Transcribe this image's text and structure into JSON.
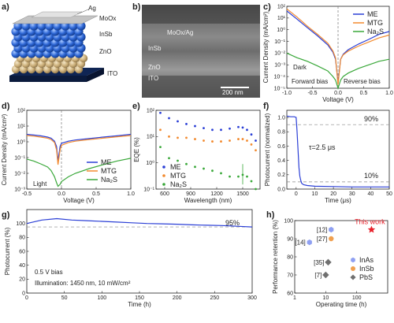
{
  "colors": {
    "ME": "#2b3fd6",
    "MTG": "#f28a2f",
    "Na2S": "#3aa83a",
    "InAs": "#8fa0f2",
    "InSb": "#f0a050",
    "PbS": "#707070",
    "this_work": "#e8202a"
  },
  "panels": {
    "a": {
      "label": "a)",
      "layers": [
        "Ag",
        "MoOx",
        "InSb",
        "ZnO",
        "ITO"
      ]
    },
    "b": {
      "label": "b)",
      "layers": [
        "MoOx/Ag",
        "InSb",
        "ZnO",
        "ITO"
      ],
      "scale_bar": "200 nm"
    },
    "c": {
      "label": "c)"
    },
    "d": {
      "label": "d)"
    },
    "e": {
      "label": "e)"
    },
    "f": {
      "label": "f)"
    },
    "g": {
      "label": "g)"
    },
    "h": {
      "label": "h)"
    }
  },
  "chart_data": [
    {
      "id": "c",
      "type": "line",
      "subtitle": "Dark",
      "xlabel": "Voltage (V)",
      "ylabel": "Current Density (mA/cm²)",
      "xlim": [
        -1.0,
        1.0
      ],
      "ylim_log10": [
        -5,
        2
      ],
      "yscale": "log",
      "xticks": [
        "-1.0",
        "-0.5",
        "0.0",
        "0.5",
        "1.0"
      ],
      "yticks": [
        "10⁻⁵",
        "10⁻⁴",
        "10⁻³",
        "10⁻²",
        "10⁻¹",
        "10⁰",
        "10¹",
        "10²"
      ],
      "annotations": [
        "Forward bias",
        "Reverse bias"
      ],
      "legend": "top-right",
      "x": [
        -1.0,
        -0.8,
        -0.6,
        -0.4,
        -0.2,
        -0.1,
        -0.05,
        0.0,
        0.05,
        0.1,
        0.2,
        0.4,
        0.6,
        0.8,
        1.0
      ],
      "series": [
        {
          "name": "ME",
          "color_key": "ME",
          "values": [
            40,
            8,
            1.5,
            0.3,
            0.05,
            0.012,
            0.003,
            3e-05,
            0.003,
            0.008,
            0.02,
            0.06,
            0.15,
            0.4,
            0.7
          ]
        },
        {
          "name": "MTG",
          "color_key": "MTG",
          "values": [
            60,
            12,
            2.0,
            0.4,
            0.07,
            0.015,
            0.004,
            2e-05,
            0.003,
            0.007,
            0.015,
            0.04,
            0.09,
            0.2,
            0.35
          ]
        },
        {
          "name": "Na₂S",
          "color_key": "Na2S",
          "values": [
            0.01,
            0.004,
            0.002,
            0.0008,
            0.0003,
            0.0001,
            5e-05,
            1e-05,
            5e-05,
            0.0001,
            0.0002,
            0.0005,
            0.001,
            0.002,
            0.003
          ]
        }
      ]
    },
    {
      "id": "d",
      "type": "line",
      "subtitle": "Light",
      "xlabel": "Voltage (V)",
      "ylabel": "Current Density (mA/cm²)",
      "xlim": [
        -0.5,
        1.0
      ],
      "ylim_log10": [
        -3,
        2
      ],
      "yscale": "log",
      "xticks": [
        "-0.5",
        "0.0",
        "0.5",
        "1.0"
      ],
      "yticks": [
        "10⁻³",
        "10⁻²",
        "10⁻¹",
        "10⁰",
        "10¹",
        "10²"
      ],
      "legend": "bottom-right",
      "x": [
        -0.5,
        -0.4,
        -0.3,
        -0.2,
        -0.15,
        -0.1,
        -0.07,
        -0.05,
        -0.02,
        0.0,
        0.1,
        0.2,
        0.4,
        0.6,
        0.8,
        1.0
      ],
      "series": [
        {
          "name": "ME",
          "color_key": "ME",
          "values": [
            3,
            2.7,
            2.4,
            2.0,
            1.7,
            1.1,
            0.5,
            0.06,
            0.5,
            0.8,
            1.1,
            1.3,
            1.6,
            2.0,
            2.4,
            3.0
          ]
        },
        {
          "name": "MTG",
          "color_key": "MTG",
          "values": [
            2.5,
            2.3,
            2.0,
            1.7,
            1.4,
            0.9,
            0.3,
            0.035,
            0.3,
            0.6,
            0.9,
            1.1,
            1.4,
            1.7,
            2.1,
            2.5
          ]
        },
        {
          "name": "Na₂S",
          "color_key": "Na2S",
          "values": [
            0.08,
            0.06,
            0.04,
            0.025,
            0.015,
            0.006,
            0.0025,
            0.0015,
            0.002,
            0.003,
            0.006,
            0.01,
            0.02,
            0.035,
            0.06,
            0.09
          ]
        }
      ]
    },
    {
      "id": "e",
      "type": "scatter",
      "xlabel": "Wavelength (nm)",
      "ylabel": "EQE (%)",
      "xlim": [
        500,
        1700
      ],
      "ylim_log10": [
        -1,
        2
      ],
      "yscale": "log",
      "xticks": [
        "600",
        "900",
        "1200",
        "1500"
      ],
      "yticks": [
        "10⁻¹",
        "10⁰",
        "10¹",
        "10²"
      ],
      "legend": "bottom-left",
      "x": [
        550,
        650,
        750,
        850,
        950,
        1050,
        1150,
        1250,
        1350,
        1450,
        1500,
        1550,
        1600,
        1650
      ],
      "series": [
        {
          "name": "ME",
          "color_key": "ME",
          "values": [
            80,
            50,
            38,
            30,
            25,
            21,
            18,
            18,
            20,
            23,
            22,
            18,
            12,
            7
          ]
        },
        {
          "name": "MTG",
          "color_key": "MTG",
          "values": [
            18,
            10,
            9,
            9,
            8,
            7,
            6.5,
            6.5,
            7,
            8,
            8,
            7,
            5,
            3
          ]
        },
        {
          "name": "Na₂S",
          "color_key": "Na2S",
          "values": [
            4,
            1.5,
            1.2,
            0.9,
            0.7,
            0.6,
            0.5,
            0.4,
            0.3,
            0.3,
            0.35,
            0.3,
            0.2,
            0.1
          ]
        }
      ]
    },
    {
      "id": "f",
      "type": "line",
      "xlabel": "Time (μs)",
      "ylabel": "Photocurrent (normalized)",
      "xlim": [
        -5,
        50
      ],
      "ylim": [
        0,
        1.1
      ],
      "xticks": [
        "0",
        "10",
        "20",
        "30",
        "40",
        "50"
      ],
      "yticks": [
        "0.0",
        "0.2",
        "0.4",
        "0.6",
        "0.8",
        "1.0"
      ],
      "reference_lines": [
        0.9,
        0.1
      ],
      "annotations": [
        "90%",
        "10%",
        "τ=2.5 μs"
      ],
      "x": [
        -5,
        -3,
        -1,
        0,
        0.5,
        1,
        1.5,
        2,
        2.5,
        3,
        4,
        6,
        10,
        20,
        30,
        40,
        50
      ],
      "series": [
        {
          "name": "",
          "color_key": "ME",
          "values": [
            1.02,
            1.01,
            1.01,
            1.0,
            0.8,
            0.55,
            0.3,
            0.18,
            0.12,
            0.08,
            0.06,
            0.05,
            0.04,
            0.035,
            0.03,
            0.03,
            0.03
          ]
        }
      ]
    },
    {
      "id": "g",
      "type": "line",
      "xlabel": "Time (h)",
      "ylabel": "Photocurrent (%)",
      "xlim": [
        0,
        300
      ],
      "ylim": [
        0,
        120
      ],
      "xticks": [
        "0",
        "50",
        "100",
        "150",
        "200",
        "250",
        "300"
      ],
      "yticks": [
        "0",
        "20",
        "40",
        "60",
        "80",
        "100"
      ],
      "reference_lines": [
        95
      ],
      "annotations": [
        "95%",
        "0.5 V bias",
        "Illumination: 1450 nm, 10 mW/cm²"
      ],
      "x": [
        0,
        20,
        40,
        60,
        80,
        100,
        120,
        140,
        160,
        180,
        200,
        220,
        240,
        260,
        280,
        300
      ],
      "series": [
        {
          "name": "",
          "color_key": "ME",
          "values": [
            100,
            105,
            107,
            105,
            104,
            103,
            102,
            101,
            100,
            99.5,
            99,
            98,
            97.5,
            97,
            96,
            95
          ]
        }
      ]
    },
    {
      "id": "h",
      "type": "scatter",
      "xlabel": "Operating time (h)",
      "ylabel": "Performance retention (%)",
      "xscale": "log",
      "xlim_log10": [
        0,
        3
      ],
      "ylim": [
        60,
        100
      ],
      "xticks": [
        "1",
        "10",
        "100"
      ],
      "yticks": [
        "60",
        "70",
        "80",
        "90",
        "100"
      ],
      "legend": "bottom-right",
      "series": [
        {
          "name": "InAs",
          "color_key": "InAs",
          "points": [
            {
              "x": 3,
              "y": 88,
              "label": "[14]"
            },
            {
              "x": 15,
              "y": 95,
              "label": "[12]"
            }
          ]
        },
        {
          "name": "InSb",
          "color_key": "InSb",
          "points": [
            {
              "x": 15,
              "y": 90,
              "label": "[27]"
            }
          ]
        },
        {
          "name": "PbS",
          "color_key": "PbS",
          "points": [
            {
              "x": 12,
              "y": 77,
              "label": "[35]"
            },
            {
              "x": 10,
              "y": 70,
              "label": "[7]"
            }
          ]
        },
        {
          "name": "This work",
          "color_key": "this_work",
          "points": [
            {
              "x": 300,
              "y": 95,
              "label": "This work"
            }
          ]
        }
      ]
    }
  ]
}
